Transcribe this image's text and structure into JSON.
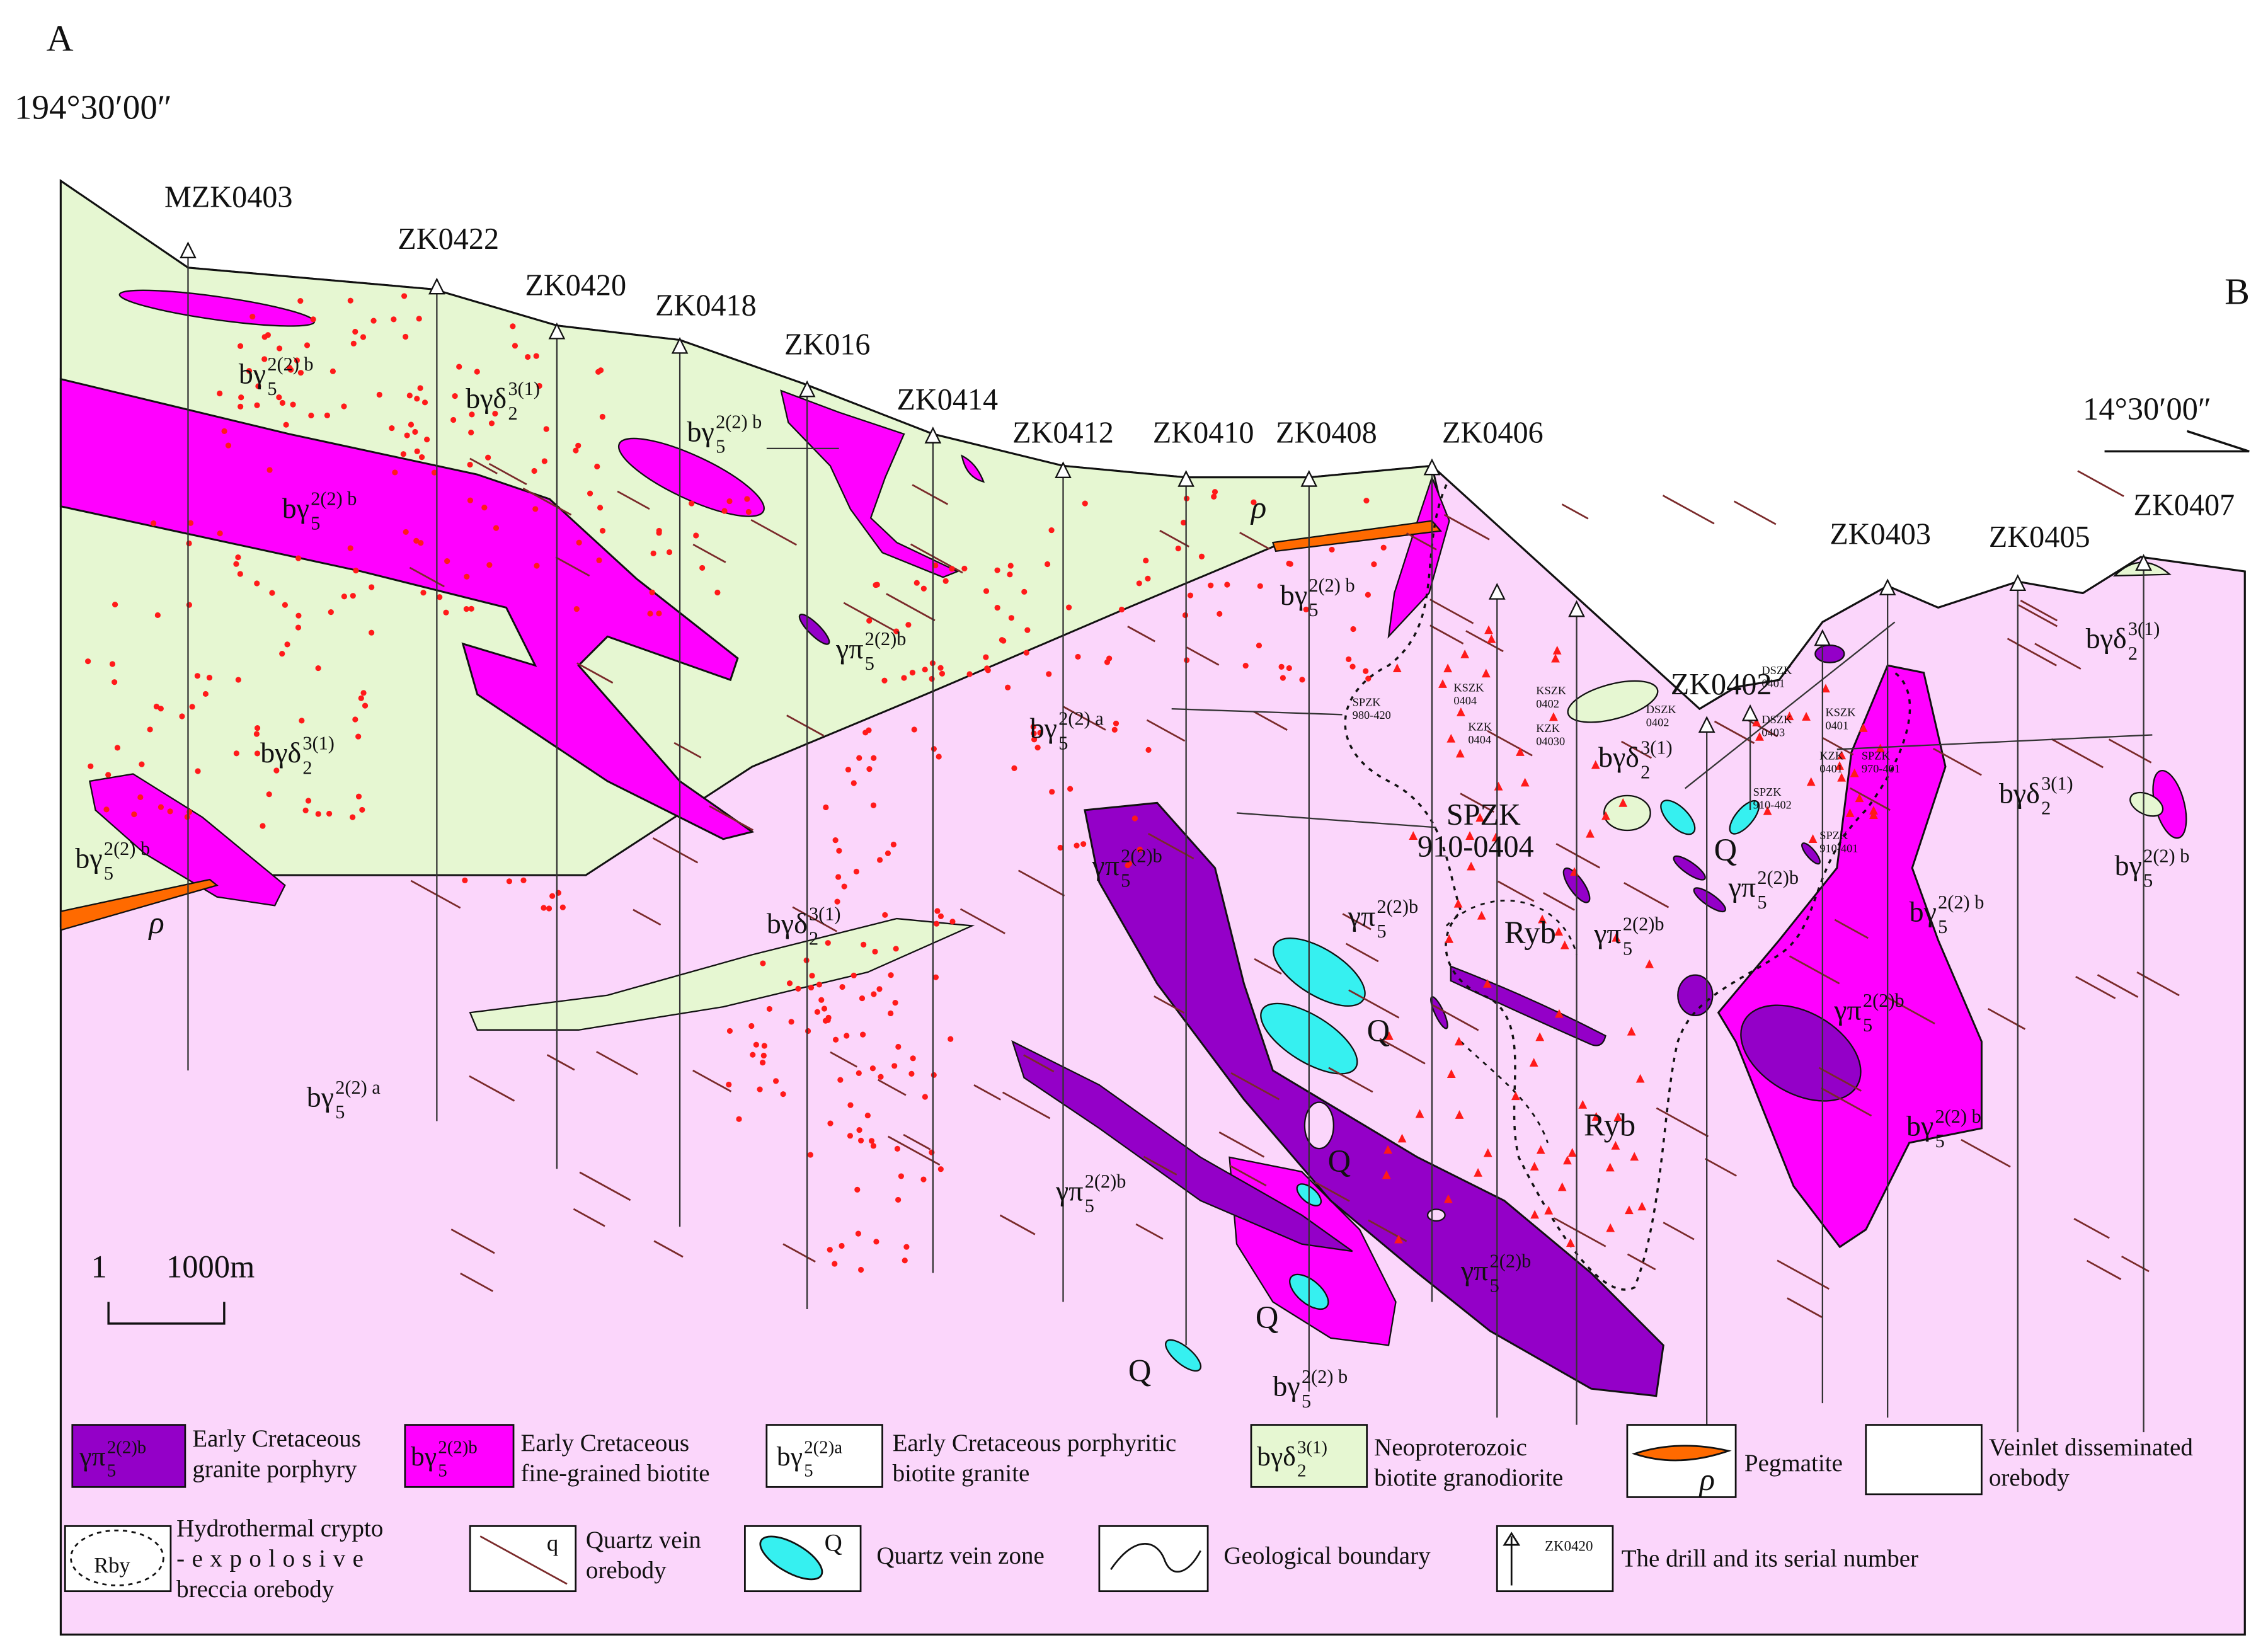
{
  "corner_labels": {
    "left": "A",
    "right": "B"
  },
  "coordinates": {
    "left": "194°30′00″",
    "right": "14°30′00″"
  },
  "drills": [
    "MZK0403",
    "ZK0422",
    "ZK0420",
    "ZK0418",
    "ZK016",
    "ZK0414",
    "ZK0412",
    "ZK0410",
    "ZK0408",
    "ZK0406",
    "ZK0403",
    "ZK0405",
    "ZK0407",
    "ZK0402"
  ],
  "minor_drills": [
    [
      "SPZK",
      "980-420"
    ],
    [
      "KSZK",
      "0404"
    ],
    [
      "KZK",
      "0404"
    ],
    [
      "KSZK",
      "0402"
    ],
    [
      "KZK",
      "04030"
    ],
    [
      "DSZK",
      "0402"
    ],
    [
      "DSZK",
      "0401"
    ],
    [
      "DSZK",
      "0403"
    ],
    [
      "KSZK",
      "0401"
    ],
    [
      "KZK",
      "0401"
    ],
    [
      "SPZK",
      "970-401"
    ],
    [
      "SPZK",
      "910-402"
    ],
    [
      "SPZK",
      "910-401"
    ]
  ],
  "main_drill_label": [
    "SPZK",
    "910-0404"
  ],
  "unit_labels": [
    {
      "base": "bγ",
      "sub": "5",
      "sup": "2(2) b"
    },
    {
      "base": "bγδ",
      "sub": "2",
      "sup": "3(1)"
    },
    {
      "base": "bγ",
      "sub": "5",
      "sup": "2(2) b"
    },
    {
      "base": "bγ",
      "sub": "5",
      "sup": "2(2) b"
    },
    {
      "base": "γπ",
      "sub": "5",
      "sup": "2(2)b"
    },
    {
      "base": "bγδ",
      "sub": "2",
      "sup": "3(1)"
    },
    {
      "base": "bγ",
      "sub": "5",
      "sup": "2(2) b"
    },
    {
      "base": "bγ",
      "sub": "5",
      "sup": "2(2) a"
    },
    {
      "base": "bγ",
      "sub": "5",
      "sup": "2(2) b"
    },
    {
      "base": "bγδ",
      "sub": "2",
      "sup": "3(1)"
    },
    {
      "base": "bγδ",
      "sub": "2",
      "sup": "3(1)"
    },
    {
      "base": "γπ",
      "sub": "5",
      "sup": "2(2)b"
    },
    {
      "base": "γπ",
      "sub": "5",
      "sup": "2(2)b"
    },
    {
      "base": "γπ",
      "sub": "5",
      "sup": "2(2)b"
    },
    {
      "base": "γπ",
      "sub": "5",
      "sup": "2(2)b"
    },
    {
      "base": "γπ",
      "sub": "5",
      "sup": "2(2)b"
    },
    {
      "base": "bγ",
      "sub": "5",
      "sup": "2(2) a"
    },
    {
      "base": "γπ",
      "sub": "5",
      "sup": "2(2)b"
    },
    {
      "base": "γπ",
      "sub": "5",
      "sup": "2(2)b"
    },
    {
      "base": "bγ",
      "sub": "5",
      "sup": "2(2) b"
    },
    {
      "base": "bγ",
      "sub": "5",
      "sup": "2(2) b"
    },
    {
      "base": "bγ",
      "sub": "5",
      "sup": "2(2) b"
    },
    {
      "base": "bγδ",
      "sub": "2",
      "sup": "3(1)"
    },
    {
      "base": "bγδ",
      "sub": "2",
      "sup": "3(1)"
    },
    {
      "base": "bγ",
      "sub": "5",
      "sup": "2(2) b"
    }
  ],
  "other_labels": [
    "ρ",
    "ρ",
    "Q",
    "Q",
    "Q",
    "Q",
    "Q",
    "Ryb",
    "Ryb"
  ],
  "scale": {
    "left": "1",
    "right": "1000m"
  },
  "legend": [
    {
      "symbol": {
        "base": "γπ",
        "sub": "5",
        "sup": "2(2)b"
      },
      "text": [
        "Early Cretaceous",
        "granite porphyry"
      ]
    },
    {
      "symbol": {
        "base": "bγ",
        "sub": "5",
        "sup": "2(2)b"
      },
      "text": [
        "Early  Cretaceous",
        "fine-grained biotite"
      ]
    },
    {
      "symbol": {
        "base": "bγ",
        "sub": "5",
        "sup": "2(2)a"
      },
      "text": [
        "Early Cretaceous porphyritic",
        "biotite granite"
      ]
    },
    {
      "symbol": {
        "base": "bγδ",
        "sub": "2",
        "sup": "3(1)"
      },
      "text": [
        "Neoproterozoic",
        "biotite granodiorite"
      ]
    },
    {
      "symbol": "ρ",
      "text": [
        "Pegmatite"
      ]
    },
    {
      "text": [
        "Veinlet disseminated",
        "orebody"
      ]
    },
    {
      "symbol": "Rby",
      "text": [
        "Hydrothermal crypto",
        "-expolosive",
        "breccia orebody"
      ]
    },
    {
      "symbol": "q",
      "text": [
        "Quartz vein",
        "orebody"
      ]
    },
    {
      "symbol": "Q",
      "text": [
        "Quartz vein zone"
      ]
    },
    {
      "text": [
        "Geological boundary"
      ]
    },
    {
      "symbol": "ZK0420",
      "text": [
        "The drill and its serial number"
      ]
    }
  ]
}
